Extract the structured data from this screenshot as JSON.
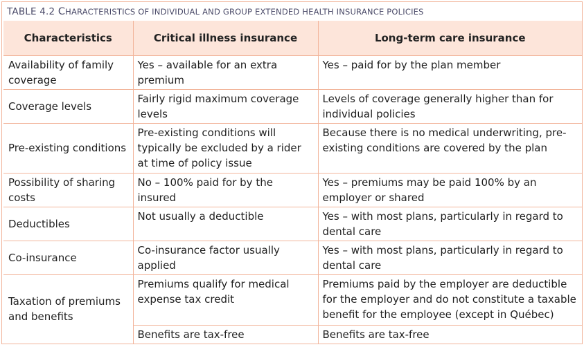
{
  "caption": {
    "number": "TABLE 4.2 ",
    "lead_letter": "C",
    "rest": "HARACTERISTICS OF INDIVIDUAL AND GROUP EXTENDED HEALTH INSURANCE POLICIES"
  },
  "headers": [
    "Characteristics",
    "Critical illness insurance",
    "Long-term care insurance"
  ],
  "rows": [
    {
      "label": "Availability of family coverage",
      "critical": "Yes – available for an extra premium",
      "ltc": "Yes – paid for by the plan member"
    },
    {
      "label": "Coverage levels",
      "critical": "Fairly rigid maximum coverage levels",
      "ltc": "Levels of coverage generally higher than for individual policies"
    },
    {
      "label": "Pre-existing conditions",
      "critical": "Pre-existing conditions will typically be excluded by a rider at time of policy issue",
      "ltc": "Because there is no medical underwriting, pre-existing conditions are covered by the plan"
    },
    {
      "label": "Possibility of sharing costs",
      "critical": "No – 100% paid for by the insured",
      "ltc": "Yes – premiums may be paid 100% by an employer or shared"
    },
    {
      "label": "Deductibles",
      "critical": "Not usually a deductible",
      "ltc": "Yes – with most plans, particularly in regard to dental care"
    },
    {
      "label": "Co-insurance",
      "critical": "Co-insurance factor usually applied",
      "ltc": "Yes – with most plans, particularly in regard to dental care"
    },
    {
      "label": "Taxation of premiums and benefits",
      "critical": "Premiums qualify for medical expense tax credit",
      "ltc": "Premiums paid by the employer are deductible for the employer and do not constitute a taxable benefit for the employee (except in Québec)"
    },
    {
      "label": "",
      "critical": "Benefits are tax-free",
      "ltc": "Benefits are tax-free"
    }
  ],
  "colors": {
    "border": "#f2b49a",
    "header_bg": "#fde5da",
    "caption_text": "#4a4a68"
  }
}
